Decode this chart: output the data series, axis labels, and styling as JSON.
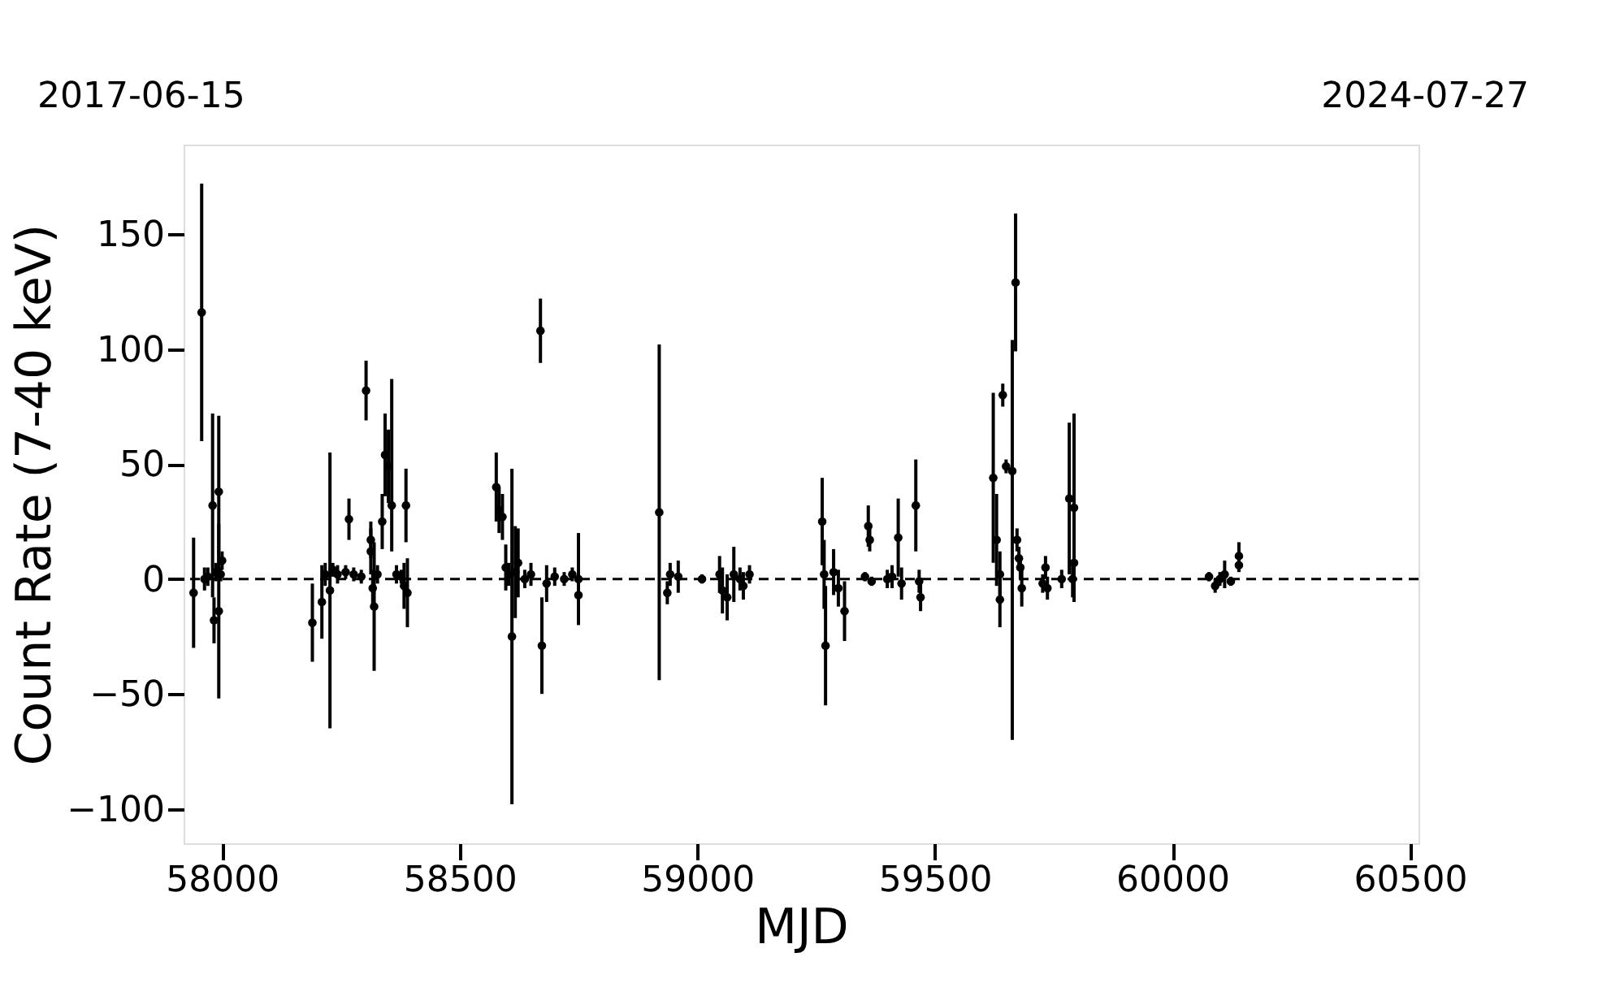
{
  "chart_data": {
    "type": "scatter",
    "xlabel": "MJD",
    "ylabel": "Count Rate (7-40 keV)",
    "annotations": [
      "2017-06-15",
      "2024-07-27"
    ],
    "xlim": [
      57919,
      60518
    ],
    "xticks": [
      58000,
      58500,
      59000,
      59500,
      60000,
      60500
    ],
    "ylim": [
      -115,
      189
    ],
    "yticks": [
      -100,
      -50,
      0,
      50,
      100,
      150
    ],
    "grid": false,
    "marker": "circle",
    "ref_lines": [
      {
        "axis": "y",
        "value": 0,
        "color": "#000000",
        "line_style": "dashed"
      }
    ],
    "series": [
      {
        "color": "#000000",
        "x": [
          57940,
          57957,
          57963,
          57970,
          57980,
          57983,
          57987,
          57993,
          57993,
          57997,
          58000,
          58190,
          58210,
          58217,
          58227,
          58233,
          58243,
          58260,
          58267,
          58277,
          58293,
          58303,
          58313,
          58313,
          58317,
          58320,
          58327,
          58337,
          58343,
          58350,
          58357,
          58367,
          58377,
          58383,
          58387,
          58390,
          58577,
          58583,
          58590,
          58597,
          58603,
          58610,
          58617,
          58623,
          58637,
          58650,
          58670,
          58673,
          58683,
          58700,
          58720,
          58737,
          58750,
          58750,
          58920,
          58937,
          58943,
          58960,
          59010,
          59047,
          59053,
          59063,
          59077,
          59090,
          59097,
          59110,
          59263,
          59267,
          59270,
          59287,
          59297,
          59310,
          59353,
          59360,
          59363,
          59367,
          59400,
          59410,
          59423,
          59430,
          59460,
          59467,
          59470,
          59623,
          59630,
          59637,
          59637,
          59643,
          59650,
          59663,
          59670,
          59673,
          59677,
          59680,
          59683,
          59727,
          59733,
          59737,
          59767,
          59783,
          59790,
          59793,
          59793,
          60077,
          60090,
          60100,
          60110,
          60123,
          60140,
          60140
        ],
        "values": [
          -6,
          116,
          0,
          1,
          32,
          -18,
          3,
          38,
          -14,
          2,
          8,
          -19,
          -10,
          2,
          -5,
          4,
          2,
          3,
          26,
          2,
          1,
          82,
          17,
          12,
          -4,
          -12,
          2,
          25,
          54,
          49,
          32,
          2,
          1,
          -3,
          32,
          -6,
          40,
          30,
          27,
          5,
          2,
          -25,
          3,
          7,
          0,
          2,
          108,
          -29,
          -2,
          1,
          0,
          2,
          -7,
          0,
          29,
          -6,
          2,
          1,
          0,
          2,
          -5,
          -8,
          2,
          0,
          -3,
          2,
          25,
          2,
          -29,
          3,
          -4,
          -14,
          1,
          23,
          17,
          -1,
          0,
          1,
          18,
          -2,
          32,
          -1,
          -8,
          44,
          17,
          2,
          -9,
          80,
          49,
          47,
          129,
          17,
          9,
          5,
          -4,
          -2,
          5,
          -4,
          0,
          35,
          0,
          31,
          7,
          1,
          -3,
          0,
          2,
          -1,
          10,
          6
        ],
        "errors": [
          24,
          56,
          5,
          4,
          40,
          10,
          4,
          33,
          38,
          3,
          4,
          17,
          16,
          5,
          60,
          3,
          4,
          3,
          9,
          3,
          3,
          13,
          8,
          10,
          8,
          28,
          4,
          12,
          18,
          16,
          [
            12,
            87
          ],
          4,
          3,
          10,
          16,
          15,
          15,
          10,
          10,
          10,
          5,
          73,
          20,
          15,
          4,
          5,
          14,
          21,
          8,
          4,
          3,
          3,
          13,
          20,
          73,
          5,
          5,
          7,
          2,
          8,
          10,
          10,
          12,
          5,
          6,
          4,
          19,
          15,
          26,
          10,
          8,
          13,
          2,
          9,
          5,
          2,
          4,
          5,
          17,
          7,
          20,
          5,
          6,
          37,
          20,
          10,
          12,
          5,
          3,
          [
            -70,
            104
          ],
          30,
          5,
          5,
          5,
          8,
          4,
          5,
          5,
          4,
          33,
          8,
          41,
          12,
          2,
          3,
          3,
          6,
          2,
          6,
          3
        ]
      }
    ]
  }
}
